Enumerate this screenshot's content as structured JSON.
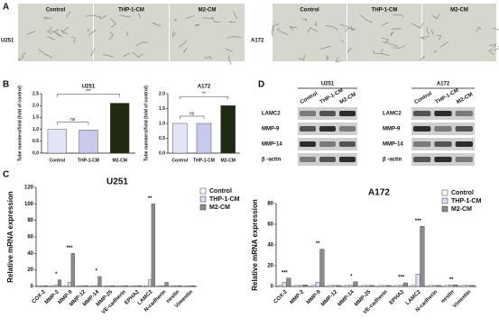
{
  "panel_labels": [
    "A",
    "B",
    "C",
    "D"
  ],
  "panel_a": {
    "groups": [
      {
        "cell_line": "U251",
        "images": [
          "Control",
          "THP-1-CM",
          "M2-CM"
        ]
      },
      {
        "cell_line": "A172",
        "images": [
          "Control",
          "THP-1-CM",
          "M2-CM"
        ]
      }
    ]
  },
  "panel_d": {
    "blots": [
      {
        "cell_line": "U251",
        "lanes": [
          "Control",
          "THP-1-CM",
          "M2-CM"
        ],
        "proteins": [
          "LAMC2",
          "MMP-9",
          "MMP-14",
          "β -actin"
        ]
      },
      {
        "cell_line": "A172",
        "lanes": [
          "Control",
          "THP-1-CM",
          "M2-CM"
        ],
        "proteins": [
          "LAMC2",
          "MMP-9",
          "MMP-14",
          "β -actin"
        ]
      }
    ]
  },
  "chart_data": [
    {
      "type": "bar",
      "title": "U251",
      "y_label": "Tube numbers/field (fold of control)",
      "categories": [
        "Control",
        "THP-1-CM",
        "M2-CM"
      ],
      "values": [
        1.0,
        0.97,
        2.1
      ],
      "colors": [
        "#e4e4f7",
        "#c9c9ee",
        "#1f2a12"
      ],
      "ylim": [
        0,
        2.5
      ],
      "yticks": [
        {
          "value": 0,
          "label": "0.0"
        },
        0.5,
        {
          "value": 1,
          "label": "1.0"
        },
        1.5,
        {
          "value": 2,
          "label": "2.0"
        },
        2.5
      ],
      "annotations": [
        {
          "text": "ns",
          "from": "Control",
          "to": "THP-1-CM"
        },
        {
          "text": "***",
          "from": "Control",
          "to": "M2-CM"
        }
      ]
    },
    {
      "type": "bar",
      "title": "A172",
      "y_label": "Tube numbers/field (fold of control)",
      "categories": [
        "Control",
        "THP-1-CM",
        "M2-CM"
      ],
      "values": [
        1.0,
        1.0,
        1.6
      ],
      "colors": [
        "#e4e4f7",
        "#c9c9ee",
        "#1f2a12"
      ],
      "ylim": [
        0,
        2
      ],
      "yticks": [
        {
          "value": 0,
          "label": "0.0"
        },
        0.5,
        {
          "value": 1,
          "label": "1.0"
        },
        1.5,
        {
          "value": 2,
          "label": "2.0"
        }
      ],
      "annotations": [
        {
          "text": "ns",
          "from": "Control",
          "to": "THP-1-CM"
        },
        {
          "text": "**",
          "from": "Control",
          "to": "M2-CM"
        }
      ]
    },
    {
      "type": "grouped_bar",
      "title": "U251",
      "y_label": "Relative mRNA expression",
      "categories": [
        "COX-2",
        "MMP-2",
        "MMP-9",
        "MMP-12",
        "MMP-14",
        "MMP-25",
        "VE-cadherin",
        "EPHA2",
        "LAMC2",
        "N-cadherin",
        "nestin",
        "Vimentin"
      ],
      "series": [
        {
          "name": "Control",
          "color": "#ffffff",
          "values": [
            1,
            1,
            1,
            1,
            1,
            1,
            1,
            1,
            1,
            1,
            1,
            1
          ]
        },
        {
          "name": "THP-1-CM",
          "color": "#dcdcf2",
          "values": [
            1,
            1.5,
            5,
            1,
            1,
            1,
            1,
            1,
            8,
            1,
            1,
            1
          ]
        },
        {
          "name": "M2-CM",
          "color": "#8c8c8c",
          "values": [
            1,
            8,
            40,
            1,
            12,
            1,
            1,
            1,
            100,
            5,
            1,
            1
          ]
        }
      ],
      "ylim": [
        0,
        120
      ],
      "yticks": [
        0,
        20,
        40,
        60,
        80,
        100,
        120
      ],
      "annotations": [
        {
          "text": "*",
          "category": "MMP-2"
        },
        {
          "text": "***",
          "category": "MMP-9"
        },
        {
          "text": "*",
          "category": "MMP-14"
        },
        {
          "text": "**",
          "category": "LAMC2"
        }
      ]
    },
    {
      "type": "grouped_bar",
      "title": "A172",
      "y_label": "Relative mRNA expression",
      "categories": [
        "COX-2",
        "MMP-2",
        "MMP-9",
        "MMP-12",
        "MMP-14",
        "MMP-25",
        "VE-cadherin",
        "EPHA2",
        "LAMC2",
        "N-cadherin",
        "nestin",
        "Vimentin"
      ],
      "series": [
        {
          "name": "Control",
          "color": "#ffffff",
          "values": [
            1,
            1,
            1,
            1,
            1,
            1,
            1,
            1,
            1,
            1,
            1,
            1
          ]
        },
        {
          "name": "THP-1-CM",
          "color": "#dcdcf2",
          "values": [
            4,
            1,
            4,
            1,
            1,
            1,
            1,
            1,
            12,
            1,
            1.5,
            1
          ]
        },
        {
          "name": "M2-CM",
          "color": "#8c8c8c",
          "values": [
            8,
            1.5,
            36,
            1,
            4.5,
            1,
            1,
            3.5,
            58,
            1,
            1.5,
            1
          ]
        }
      ],
      "ylim": [
        0,
        80
      ],
      "yticks": [
        0,
        20,
        40,
        60,
        80
      ],
      "annotations": [
        {
          "text": "***",
          "category": "COX-2"
        },
        {
          "text": "**",
          "category": "MMP-9"
        },
        {
          "text": "*",
          "category": "MMP-14"
        },
        {
          "text": "***",
          "category": "EPHA2"
        },
        {
          "text": "***",
          "category": "LAMC2"
        },
        {
          "text": "**",
          "category": "nestin"
        }
      ]
    }
  ]
}
